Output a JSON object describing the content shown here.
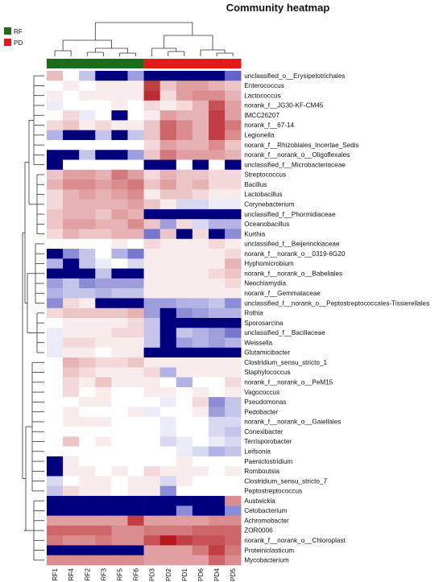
{
  "chart_data": {
    "type": "heatmap",
    "title": "Community heatmap",
    "group_legend": [
      {
        "name": "RF",
        "color": "#1e6b1e"
      },
      {
        "name": "PD",
        "color": "#e31a1c"
      }
    ],
    "columns": [
      "RF1",
      "RF4",
      "RF2",
      "RF3",
      "RF5",
      "RF6",
      "PD3",
      "PD2",
      "PD1",
      "PD6",
      "PD4",
      "PD5"
    ],
    "column_groups": [
      "RF",
      "RF",
      "RF",
      "RF",
      "RF",
      "RF",
      "PD",
      "PD",
      "PD",
      "PD",
      "PD",
      "PD"
    ],
    "rows": [
      "unclassified_o__Erysipelotrichales",
      "Enterococcus",
      "Lactococcus",
      "norank_f__JG30-KF-CM45",
      "IMCC26207",
      "norank_f__67-14",
      "Legionella",
      "norank_f__Rhizobiales_Incertae_Sedis",
      "norank_f__norank_o__Oligoflexales",
      "unclassified_f__Microbacteriaceae",
      "Streptococcus",
      "Bacillus",
      "Lactobacillus",
      "Corynebacterium",
      "unclassified_f__Phormidiaceae",
      "Oceanobacillus",
      "Kurthia",
      "unclassified_f__Beijerinckiaceae",
      "norank_f__norank_o__0319-6G20",
      "Hyphomicrobium",
      "norank_f__norank_o__Babeliales",
      "Neochlamydia",
      "norank_f__Gemmataceae",
      "unclassified_f__norank_o__Peptostreptococcales-Tissierellales",
      "Rothia",
      "Sporosarcina",
      "unclassified_f__Bacillaceae",
      "Weissella",
      "Glutamicibacter",
      "Clostridium_sensu_stricto_1",
      "Staphylococcus",
      "norank_f__norank_o__PeM15",
      "Vagococcus",
      "Pseudomonas",
      "Pedobacter",
      "norank_f__norank_o__Gaiellales",
      "Conexibacter",
      "Terrisporobacter",
      "Leifsonia",
      "Paeniclostridium",
      "Romboutsia",
      "Clostridium_sensu_stricto_7",
      "Peptostreptococcus",
      "Austwickia",
      "Cetobacterium",
      "Achromobacter",
      "ZOR0006",
      "norank_f__norank_o__Chloroplast",
      "Proteiniclasticum",
      "Mycobacterium"
    ],
    "values": [
      [
        0.35,
        0,
        -0.3,
        -2,
        -2,
        -0.5,
        -2,
        -2,
        -2,
        -2,
        -2,
        -0.8
      ],
      [
        0,
        0.1,
        0,
        0.1,
        0.1,
        0.1,
        1.0,
        0.3,
        0.5,
        0.5,
        0.4,
        0.3
      ],
      [
        0.1,
        0,
        0.1,
        0.1,
        0.1,
        0.1,
        1.1,
        0.2,
        0.5,
        0.6,
        0.6,
        0.4
      ],
      [
        -0.1,
        0,
        0,
        0,
        0.1,
        0,
        0.2,
        0.1,
        0.2,
        0.4,
        0.9,
        0.5
      ],
      [
        0,
        0.2,
        -0.1,
        0,
        -2,
        0,
        0.1,
        0.5,
        0.4,
        0.4,
        1.0,
        0.5
      ],
      [
        0.2,
        0.3,
        0.1,
        0.2,
        0.1,
        0.1,
        0.3,
        0.8,
        0.6,
        0.4,
        1.0,
        0.7
      ],
      [
        -0.4,
        -2,
        -2,
        -0.3,
        -2,
        -0.3,
        0.3,
        0.8,
        0.6,
        0.4,
        1.0,
        0.6
      ],
      [
        0,
        0,
        0,
        0,
        0,
        0,
        0.2,
        0.5,
        0.4,
        0.4,
        0.6,
        0.3
      ],
      [
        -2,
        -2,
        -0.3,
        -2,
        -2,
        -0.5,
        0.3,
        0.7,
        0.5,
        0.5,
        0.5,
        0.4
      ],
      [
        -2,
        0,
        0,
        0,
        0,
        0,
        -2,
        -2,
        0,
        -2,
        0,
        -2
      ],
      [
        0.3,
        0.5,
        0.5,
        0.4,
        0.7,
        0.5,
        0.2,
        0.4,
        0.3,
        0.3,
        0.2,
        0.2
      ],
      [
        0.4,
        0.6,
        0.6,
        0.5,
        0.6,
        0.7,
        0.3,
        0.5,
        0.3,
        0.4,
        0.2,
        0.2
      ],
      [
        0.2,
        0.4,
        0.5,
        0.4,
        0.5,
        0.6,
        0.1,
        0.3,
        0.3,
        0.2,
        0.1,
        0.1
      ],
      [
        0.2,
        0.4,
        0.4,
        0.4,
        0.4,
        0.5,
        0.3,
        0.1,
        -0.2,
        -0.2,
        -0.1,
        -0.1
      ],
      [
        0.3,
        0.4,
        0.4,
        0.3,
        0.5,
        0.4,
        -2,
        -2,
        -2,
        -2,
        -2,
        -2
      ],
      [
        0.3,
        0.5,
        0.5,
        0.4,
        0.4,
        0.6,
        0.3,
        -0.5,
        0.2,
        -0.2,
        -0.4,
        -0.4
      ],
      [
        0.2,
        0.4,
        0.3,
        0.3,
        0.4,
        0.4,
        -0.7,
        0.3,
        -2,
        0.2,
        -2,
        -0.6
      ],
      [
        0,
        0,
        0,
        0,
        0.1,
        0,
        0.2,
        0.1,
        0.1,
        0.1,
        0.2,
        0.1
      ],
      [
        -2,
        -0.6,
        -0.3,
        0,
        -0.4,
        -0.7,
        0.1,
        0.1,
        0.1,
        0.1,
        0.1,
        0.2
      ],
      [
        -0.4,
        -2,
        -0.3,
        -0.1,
        0,
        -0.2,
        0.1,
        0.1,
        0.1,
        0.1,
        0.1,
        0.4
      ],
      [
        -2,
        -2,
        -2,
        -0.3,
        -2,
        -2,
        0.1,
        0.1,
        0.1,
        0.1,
        0.2,
        0.3
      ],
      [
        -0.5,
        -0.3,
        -0.6,
        -0.5,
        -0.5,
        -0.5,
        0.1,
        0.1,
        0.1,
        0.1,
        0.1,
        0.2
      ],
      [
        -0.4,
        -0.3,
        -0.3,
        -0.4,
        -0.3,
        -0.3,
        0.1,
        0.1,
        0.1,
        0.1,
        0.1,
        0.1
      ],
      [
        -0.6,
        0.2,
        0.1,
        -2,
        -2,
        -2,
        -0.5,
        -0.5,
        -0.4,
        -0.4,
        -0.3,
        -0.6
      ],
      [
        0.2,
        0.3,
        0.3,
        0.3,
        0.3,
        0.4,
        -0.5,
        -2,
        -0.6,
        -0.5,
        -0.4,
        -0.4
      ],
      [
        0,
        0.1,
        0.1,
        0.1,
        0.1,
        0.2,
        -0.3,
        -2,
        -2,
        -2,
        -2,
        -2
      ],
      [
        -0.1,
        0.1,
        0.1,
        0.1,
        0.2,
        0.2,
        -0.3,
        -2,
        -0.3,
        -0.4,
        -0.5,
        -0.7
      ],
      [
        -0.1,
        0.2,
        0.2,
        0.1,
        0.1,
        0.1,
        -0.3,
        -2,
        -0.5,
        -0.4,
        -0.5,
        -0.4
      ],
      [
        -0.1,
        0.1,
        0.1,
        0,
        0.1,
        0.1,
        -2,
        -2,
        -2,
        -2,
        -2,
        -2
      ],
      [
        0,
        0.4,
        0.3,
        0.2,
        0.2,
        0.3,
        0.1,
        0.1,
        0.1,
        0.1,
        0.1,
        0.1
      ],
      [
        0,
        0.3,
        0.2,
        0.1,
        0.1,
        0.1,
        0.2,
        -0.4,
        0.1,
        0.1,
        0.1,
        0.1
      ],
      [
        0,
        0.2,
        0.1,
        0.3,
        0.1,
        0.1,
        0.1,
        0,
        -0.4,
        0,
        0,
        0.2
      ],
      [
        0,
        0.2,
        0,
        0.1,
        0,
        0,
        0.1,
        0.1,
        0,
        0.1,
        0,
        0.1
      ],
      [
        0,
        0,
        0.1,
        0.1,
        0,
        0,
        0,
        -0.1,
        0,
        0.2,
        -0.6,
        -0.3
      ],
      [
        0,
        0.1,
        0,
        0,
        0,
        0.1,
        -0.1,
        0,
        0,
        0.1,
        -0.5,
        -0.3
      ],
      [
        0,
        0.1,
        0.1,
        0.1,
        0,
        0,
        0,
        -0.1,
        0,
        0,
        -0.2,
        -0.2
      ],
      [
        0,
        0,
        0,
        0,
        0,
        0,
        0,
        -0.1,
        0,
        0,
        -0.2,
        -0.3
      ],
      [
        0,
        0.3,
        0,
        0.1,
        0,
        0,
        0,
        -0.2,
        -0.1,
        0,
        -0.1,
        -0.2
      ],
      [
        0,
        0,
        0,
        0,
        0,
        0,
        0,
        0,
        -0.1,
        -0.2,
        -0.4,
        -0.3
      ],
      [
        -2,
        0.1,
        0,
        0,
        0,
        0,
        0,
        0,
        0.1,
        0,
        0,
        0
      ],
      [
        -2,
        0.1,
        0.1,
        0,
        0.1,
        0,
        0.2,
        0.1,
        0.1,
        0.1,
        0,
        0.1
      ],
      [
        -0.2,
        0,
        0.1,
        0.1,
        0,
        0.1,
        0.1,
        -0.2,
        0.1,
        0,
        0,
        0
      ],
      [
        -0.3,
        0.2,
        0.1,
        0.1,
        0,
        0.1,
        0.1,
        -0.6,
        0,
        0,
        0,
        0
      ],
      [
        -2,
        -2,
        -2,
        -2,
        -2,
        -2,
        -2,
        -2,
        -2,
        -2,
        -2,
        0.6
      ],
      [
        -2,
        -2,
        -2,
        -2,
        -2,
        -2,
        -2,
        -2,
        -0.6,
        -2,
        -2,
        -0.6
      ],
      [
        0.5,
        0.5,
        0.5,
        0.5,
        0.5,
        1.0,
        0.5,
        0.5,
        0.5,
        0.5,
        0.6,
        0.6
      ],
      [
        0.8,
        0.8,
        0.8,
        0.8,
        0.6,
        0.6,
        0.7,
        0.7,
        0.7,
        0.8,
        0.8,
        0.8
      ],
      [
        0.7,
        0.6,
        0.6,
        0.7,
        0.6,
        0.6,
        0.9,
        1.2,
        1.0,
        0.9,
        0.9,
        0.8
      ],
      [
        -2,
        -2,
        -2,
        -2,
        -2,
        -2,
        0.5,
        0.5,
        0.5,
        0.7,
        1.0,
        0.7
      ],
      [
        0.6,
        0.6,
        0.6,
        0.6,
        0.6,
        0.6,
        0.5,
        0.5,
        0.5,
        0.5,
        0.8,
        0.6
      ]
    ]
  }
}
